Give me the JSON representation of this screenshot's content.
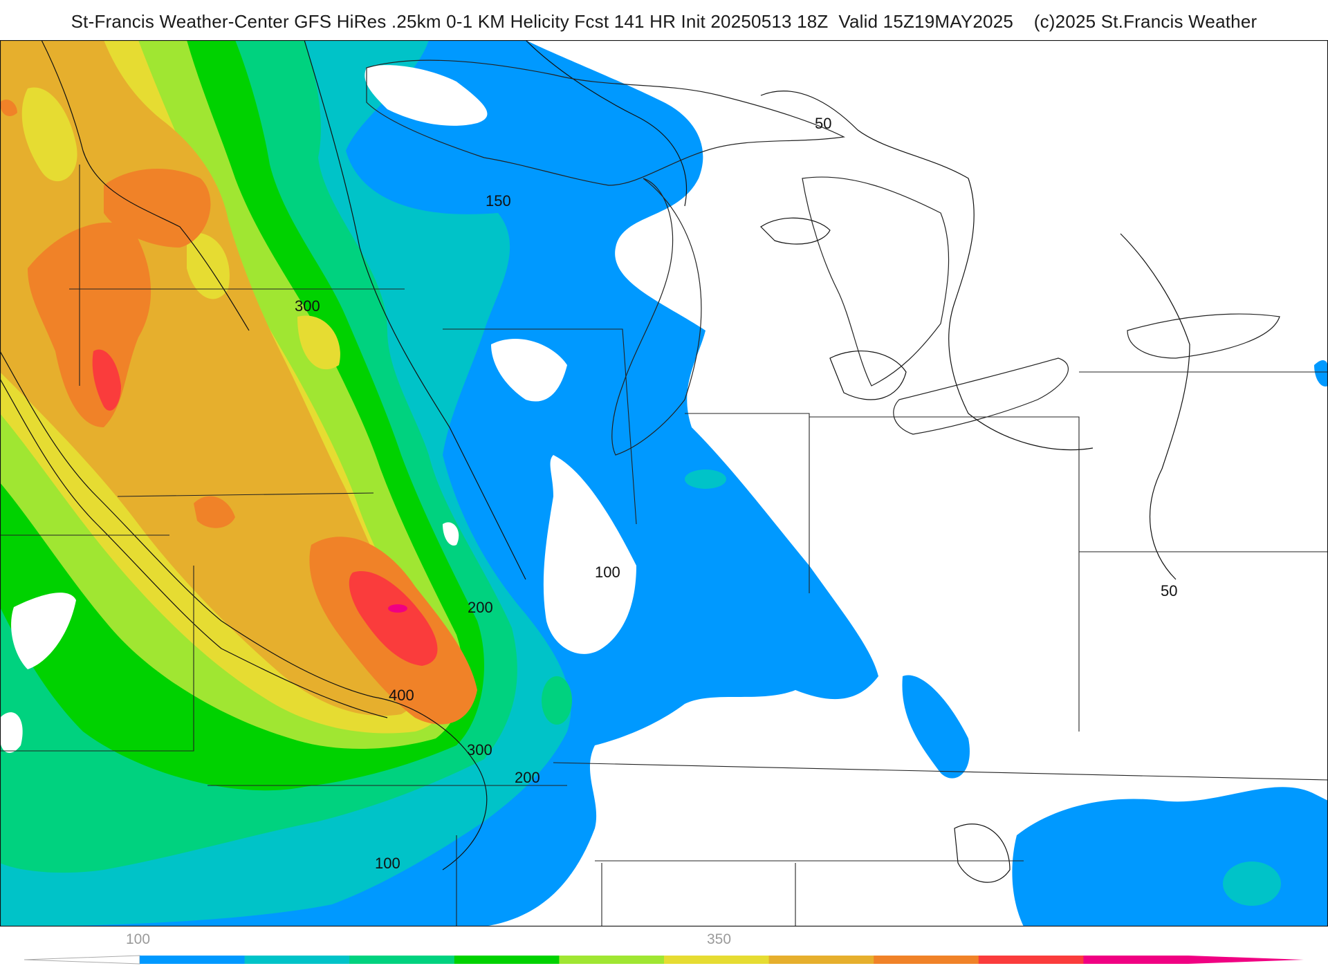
{
  "header": {
    "title": "St-Francis Weather-Center GFS HiRes .25km 0-1 KM Helicity Fcst 141 HR Init 20250513 18Z  Valid 15Z19MAY2025    (c)2025 St.Francis Weather"
  },
  "map": {
    "contour_labels": [
      "50",
      "150",
      "300",
      "100",
      "200",
      "400",
      "300",
      "200",
      "100",
      "50"
    ]
  },
  "colorbar": {
    "tick_labels": [
      "100",
      "350"
    ],
    "colors": [
      "#0099ff",
      "#00c3c8",
      "#00d27f",
      "#00d200",
      "#a0e632",
      "#e6dc32",
      "#e6af2d",
      "#f08228",
      "#fa3c3c",
      "#f00082"
    ]
  }
}
